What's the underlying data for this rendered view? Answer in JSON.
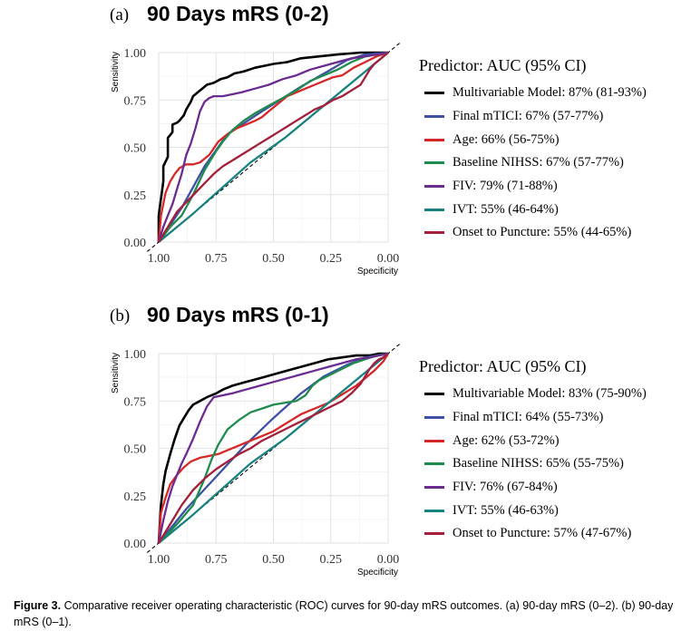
{
  "panels": [
    {
      "letter": "(a)",
      "title": "90 Days mRS (0-2)",
      "legend_title": "Predictor: AUC (95% CI)",
      "xlabel": "Specificity",
      "ylabel": "Sensitivity",
      "xticks": [
        "1.00",
        "0.75",
        "0.50",
        "0.25",
        "0.00"
      ],
      "yticks": [
        "0.00",
        "0.25",
        "0.50",
        "0.75",
        "1.00"
      ]
    },
    {
      "letter": "(b)",
      "title": "90 Days mRS (0-1)",
      "legend_title": "Predictor: AUC (95% CI)",
      "xlabel": "Specificity",
      "ylabel": "Sensitivity",
      "xticks": [
        "1.00",
        "0.75",
        "0.50",
        "0.25",
        "0.00"
      ],
      "yticks": [
        "0.00",
        "0.25",
        "0.50",
        "0.75",
        "1.00"
      ]
    }
  ],
  "caption": {
    "label": "Figure 3.",
    "text": "Comparative receiver operating characteristic (ROC) curves for 90-day mRS outcomes. (a) 90-day mRS (0–2). (b) 90-day mRS (0–1)."
  },
  "chart_data": [
    {
      "type": "line",
      "title": "90 Days mRS (0-2)",
      "xlabel": "Specificity",
      "ylabel": "Sensitivity",
      "x_reversed": true,
      "xlim": [
        1.0,
        0.0
      ],
      "ylim": [
        0.0,
        1.0
      ],
      "grid": true,
      "reference_line": "diagonal dashed",
      "legend_title": "Predictor: AUC (95% CI)",
      "legend_position": "right",
      "series": [
        {
          "name": "Multivariable Model: 87% (81-93%)",
          "color": "#000000",
          "x": [
            1.0,
            1.0,
            0.98,
            0.98,
            0.96,
            0.96,
            0.94,
            0.94,
            0.92,
            0.91,
            0.89,
            0.88,
            0.86,
            0.85,
            0.83,
            0.81,
            0.79,
            0.76,
            0.73,
            0.7,
            0.67,
            0.63,
            0.58,
            0.54,
            0.5,
            0.44,
            0.38,
            0.3,
            0.22,
            0.12,
            0.05,
            0.0
          ],
          "y": [
            0.0,
            0.14,
            0.32,
            0.4,
            0.45,
            0.55,
            0.58,
            0.62,
            0.63,
            0.64,
            0.67,
            0.7,
            0.74,
            0.77,
            0.79,
            0.81,
            0.83,
            0.84,
            0.86,
            0.87,
            0.89,
            0.9,
            0.92,
            0.93,
            0.94,
            0.95,
            0.97,
            0.98,
            0.99,
            1.0,
            1.0,
            1.0
          ]
        },
        {
          "name": "Final mTICI: 67% (57-77%)",
          "color": "#3f51a3",
          "x": [
            1.0,
            0.9,
            0.8,
            0.7,
            0.55,
            0.38,
            0.25,
            0.18,
            0.1,
            0.0
          ],
          "y": [
            0.0,
            0.18,
            0.4,
            0.57,
            0.69,
            0.82,
            0.91,
            0.96,
            0.99,
            1.0
          ]
        },
        {
          "name": "Age: 66% (56-75%)",
          "color": "#d62728",
          "x": [
            1.0,
            0.99,
            0.97,
            0.95,
            0.93,
            0.91,
            0.88,
            0.85,
            0.82,
            0.78,
            0.74,
            0.7,
            0.66,
            0.62,
            0.58,
            0.55,
            0.52,
            0.48,
            0.44,
            0.4,
            0.36,
            0.32,
            0.28,
            0.24,
            0.2,
            0.15,
            0.1,
            0.05,
            0.0
          ],
          "y": [
            0.0,
            0.14,
            0.26,
            0.32,
            0.36,
            0.39,
            0.41,
            0.41,
            0.42,
            0.46,
            0.53,
            0.57,
            0.6,
            0.62,
            0.64,
            0.66,
            0.69,
            0.73,
            0.77,
            0.79,
            0.81,
            0.83,
            0.85,
            0.87,
            0.88,
            0.92,
            0.95,
            0.98,
            1.0
          ]
        },
        {
          "name": "Baseline NIHSS: 67% (57-77%)",
          "color": "#1e8c4e",
          "x": [
            1.0,
            0.95,
            0.9,
            0.85,
            0.8,
            0.78,
            0.75,
            0.72,
            0.68,
            0.63,
            0.58,
            0.52,
            0.46,
            0.4,
            0.34,
            0.28,
            0.22,
            0.16,
            0.1,
            0.05,
            0.0
          ],
          "y": [
            0.0,
            0.08,
            0.14,
            0.25,
            0.38,
            0.42,
            0.48,
            0.53,
            0.59,
            0.64,
            0.68,
            0.72,
            0.76,
            0.8,
            0.85,
            0.88,
            0.91,
            0.95,
            0.98,
            0.99,
            1.0
          ]
        },
        {
          "name": "FIV: 79% (71-88%)",
          "color": "#6b2c91",
          "x": [
            1.0,
            0.98,
            0.96,
            0.94,
            0.92,
            0.9,
            0.88,
            0.86,
            0.84,
            0.82,
            0.8,
            0.78,
            0.76,
            0.72,
            0.68,
            0.64,
            0.58,
            0.52,
            0.46,
            0.4,
            0.34,
            0.28,
            0.22,
            0.16,
            0.1,
            0.05,
            0.0
          ],
          "y": [
            0.0,
            0.08,
            0.14,
            0.2,
            0.28,
            0.36,
            0.46,
            0.52,
            0.6,
            0.69,
            0.74,
            0.76,
            0.77,
            0.77,
            0.78,
            0.79,
            0.81,
            0.83,
            0.86,
            0.88,
            0.91,
            0.93,
            0.95,
            0.97,
            0.98,
            0.99,
            1.0
          ]
        },
        {
          "name": "IVT: 55% (46-64%)",
          "color": "#17827f",
          "x": [
            1.0,
            0.85,
            0.6,
            0.45,
            0.0
          ],
          "y": [
            0.0,
            0.15,
            0.42,
            0.55,
            1.0
          ]
        },
        {
          "name": "Onset to Puncture: 55% (44-65%)",
          "color": "#a31f3a",
          "x": [
            1.0,
            0.96,
            0.92,
            0.88,
            0.84,
            0.8,
            0.76,
            0.72,
            0.68,
            0.64,
            0.6,
            0.56,
            0.52,
            0.48,
            0.44,
            0.4,
            0.36,
            0.32,
            0.28,
            0.24,
            0.2,
            0.16,
            0.12,
            0.1,
            0.08,
            0.06,
            0.04,
            0.02,
            0.0
          ],
          "y": [
            0.0,
            0.08,
            0.16,
            0.21,
            0.26,
            0.31,
            0.36,
            0.4,
            0.43,
            0.46,
            0.49,
            0.52,
            0.55,
            0.58,
            0.61,
            0.64,
            0.67,
            0.7,
            0.72,
            0.75,
            0.77,
            0.8,
            0.83,
            0.87,
            0.91,
            0.94,
            0.96,
            0.98,
            1.0
          ]
        }
      ]
    },
    {
      "type": "line",
      "title": "90 Days mRS (0-1)",
      "xlabel": "Specificity",
      "ylabel": "Sensitivity",
      "x_reversed": true,
      "xlim": [
        1.0,
        0.0
      ],
      "ylim": [
        0.0,
        1.0
      ],
      "grid": true,
      "reference_line": "diagonal dashed",
      "legend_title": "Predictor: AUC (95% CI)",
      "legend_position": "right",
      "series": [
        {
          "name": "Multivariable Model: 83% (75-90%)",
          "color": "#000000",
          "x": [
            1.0,
            0.99,
            0.98,
            0.97,
            0.95,
            0.93,
            0.91,
            0.89,
            0.87,
            0.85,
            0.82,
            0.79,
            0.75,
            0.72,
            0.68,
            0.62,
            0.56,
            0.5,
            0.44,
            0.38,
            0.32,
            0.26,
            0.2,
            0.14,
            0.08,
            0.04,
            0.0
          ],
          "y": [
            0.0,
            0.2,
            0.31,
            0.38,
            0.47,
            0.55,
            0.62,
            0.66,
            0.7,
            0.73,
            0.75,
            0.77,
            0.79,
            0.81,
            0.83,
            0.85,
            0.87,
            0.89,
            0.91,
            0.93,
            0.95,
            0.97,
            0.98,
            0.99,
            0.99,
            1.0,
            1.0
          ]
        },
        {
          "name": "Final mTICI: 64% (55-73%)",
          "color": "#3f51a3",
          "x": [
            1.0,
            0.88,
            0.75,
            0.62,
            0.5,
            0.38,
            0.28,
            0.18,
            0.1,
            0.0
          ],
          "y": [
            0.0,
            0.18,
            0.35,
            0.52,
            0.66,
            0.79,
            0.88,
            0.94,
            0.98,
            1.0
          ]
        },
        {
          "name": "Age: 62% (53-72%)",
          "color": "#d62728",
          "x": [
            1.0,
            0.99,
            0.97,
            0.95,
            0.92,
            0.89,
            0.86,
            0.82,
            0.78,
            0.74,
            0.7,
            0.66,
            0.62,
            0.58,
            0.54,
            0.5,
            0.46,
            0.42,
            0.38,
            0.34,
            0.3,
            0.26,
            0.22,
            0.18,
            0.14,
            0.1,
            0.06,
            0.02,
            0.0
          ],
          "y": [
            0.0,
            0.16,
            0.24,
            0.31,
            0.36,
            0.4,
            0.43,
            0.45,
            0.46,
            0.47,
            0.49,
            0.51,
            0.53,
            0.55,
            0.57,
            0.59,
            0.62,
            0.65,
            0.68,
            0.7,
            0.72,
            0.74,
            0.77,
            0.8,
            0.83,
            0.87,
            0.91,
            0.96,
            1.0
          ]
        },
        {
          "name": "Baseline NIHSS: 65% (55-75%)",
          "color": "#1e8c4e",
          "x": [
            1.0,
            0.92,
            0.85,
            0.8,
            0.77,
            0.74,
            0.7,
            0.65,
            0.6,
            0.55,
            0.5,
            0.45,
            0.4,
            0.36,
            0.33,
            0.3,
            0.25,
            0.2,
            0.15,
            0.1,
            0.05,
            0.0
          ],
          "y": [
            0.0,
            0.1,
            0.2,
            0.34,
            0.44,
            0.52,
            0.6,
            0.65,
            0.69,
            0.71,
            0.73,
            0.74,
            0.75,
            0.78,
            0.83,
            0.86,
            0.89,
            0.92,
            0.95,
            0.97,
            0.99,
            1.0
          ]
        },
        {
          "name": "FIV: 76% (67-84%)",
          "color": "#6b2c91",
          "x": [
            1.0,
            0.98,
            0.96,
            0.94,
            0.92,
            0.9,
            0.88,
            0.85,
            0.82,
            0.79,
            0.76,
            0.72,
            0.68,
            0.62,
            0.56,
            0.5,
            0.44,
            0.38,
            0.32,
            0.26,
            0.2,
            0.14,
            0.08,
            0.04,
            0.0
          ],
          "y": [
            0.0,
            0.12,
            0.22,
            0.3,
            0.36,
            0.42,
            0.47,
            0.55,
            0.64,
            0.72,
            0.77,
            0.78,
            0.79,
            0.81,
            0.83,
            0.85,
            0.87,
            0.89,
            0.91,
            0.93,
            0.95,
            0.97,
            0.98,
            0.99,
            1.0
          ]
        },
        {
          "name": "IVT: 55% (46-63%)",
          "color": "#17827f",
          "x": [
            1.0,
            0.85,
            0.6,
            0.45,
            0.0
          ],
          "y": [
            0.0,
            0.15,
            0.42,
            0.55,
            1.0
          ]
        },
        {
          "name": "Onset to Puncture: 57% (47-67%)",
          "color": "#a31f3a",
          "x": [
            1.0,
            0.95,
            0.9,
            0.85,
            0.8,
            0.75,
            0.7,
            0.65,
            0.6,
            0.55,
            0.5,
            0.45,
            0.4,
            0.35,
            0.3,
            0.25,
            0.2,
            0.16,
            0.12,
            0.1,
            0.08,
            0.06,
            0.04,
            0.02,
            0.0
          ],
          "y": [
            0.0,
            0.1,
            0.2,
            0.28,
            0.34,
            0.39,
            0.43,
            0.47,
            0.5,
            0.54,
            0.57,
            0.6,
            0.63,
            0.66,
            0.69,
            0.72,
            0.75,
            0.79,
            0.84,
            0.88,
            0.92,
            0.95,
            0.97,
            0.98,
            1.0
          ]
        }
      ]
    }
  ]
}
